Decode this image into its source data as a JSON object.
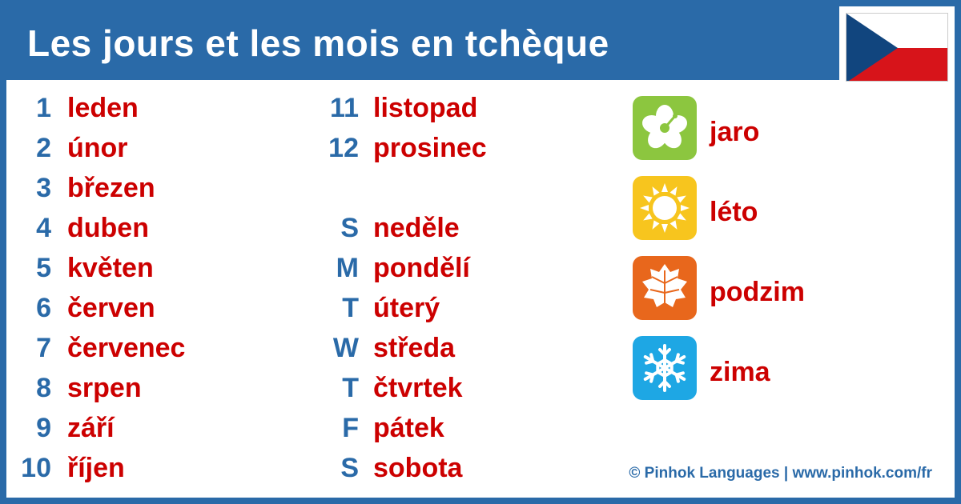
{
  "title": "Les jours et les mois en tchèque",
  "months": [
    {
      "num": "1",
      "word": "leden"
    },
    {
      "num": "2",
      "word": "únor"
    },
    {
      "num": "3",
      "word": "březen"
    },
    {
      "num": "4",
      "word": "duben"
    },
    {
      "num": "5",
      "word": "květen"
    },
    {
      "num": "6",
      "word": "červen"
    },
    {
      "num": "7",
      "word": "červenec"
    },
    {
      "num": "8",
      "word": "srpen"
    },
    {
      "num": "9",
      "word": "září"
    },
    {
      "num": "10",
      "word": "říjen"
    },
    {
      "num": "11",
      "word": "listopad"
    },
    {
      "num": "12",
      "word": "prosinec"
    }
  ],
  "days": [
    {
      "abbr": "S",
      "word": "neděle"
    },
    {
      "abbr": "M",
      "word": "pondělí"
    },
    {
      "abbr": "T",
      "word": "úterý"
    },
    {
      "abbr": "W",
      "word": "středa"
    },
    {
      "abbr": "T",
      "word": "čtvrtek"
    },
    {
      "abbr": "F",
      "word": "pátek"
    },
    {
      "abbr": "S",
      "word": "sobota"
    }
  ],
  "seasons": [
    {
      "icon": "flower-icon",
      "color": "#8cc63f",
      "word": "jaro"
    },
    {
      "icon": "sun-icon",
      "color": "#f7c51e",
      "word": "léto"
    },
    {
      "icon": "leaf-icon",
      "color": "#e8671c",
      "word": "podzim"
    },
    {
      "icon": "snowflake-icon",
      "color": "#1ea7e4",
      "word": "zima"
    }
  ],
  "footer": "© Pinhok Languages | www.pinhok.com/fr",
  "colors": {
    "brand_blue": "#2a6aa8",
    "word_red": "#cc0000",
    "flag_blue": "#11457e",
    "flag_red": "#d7141a"
  }
}
